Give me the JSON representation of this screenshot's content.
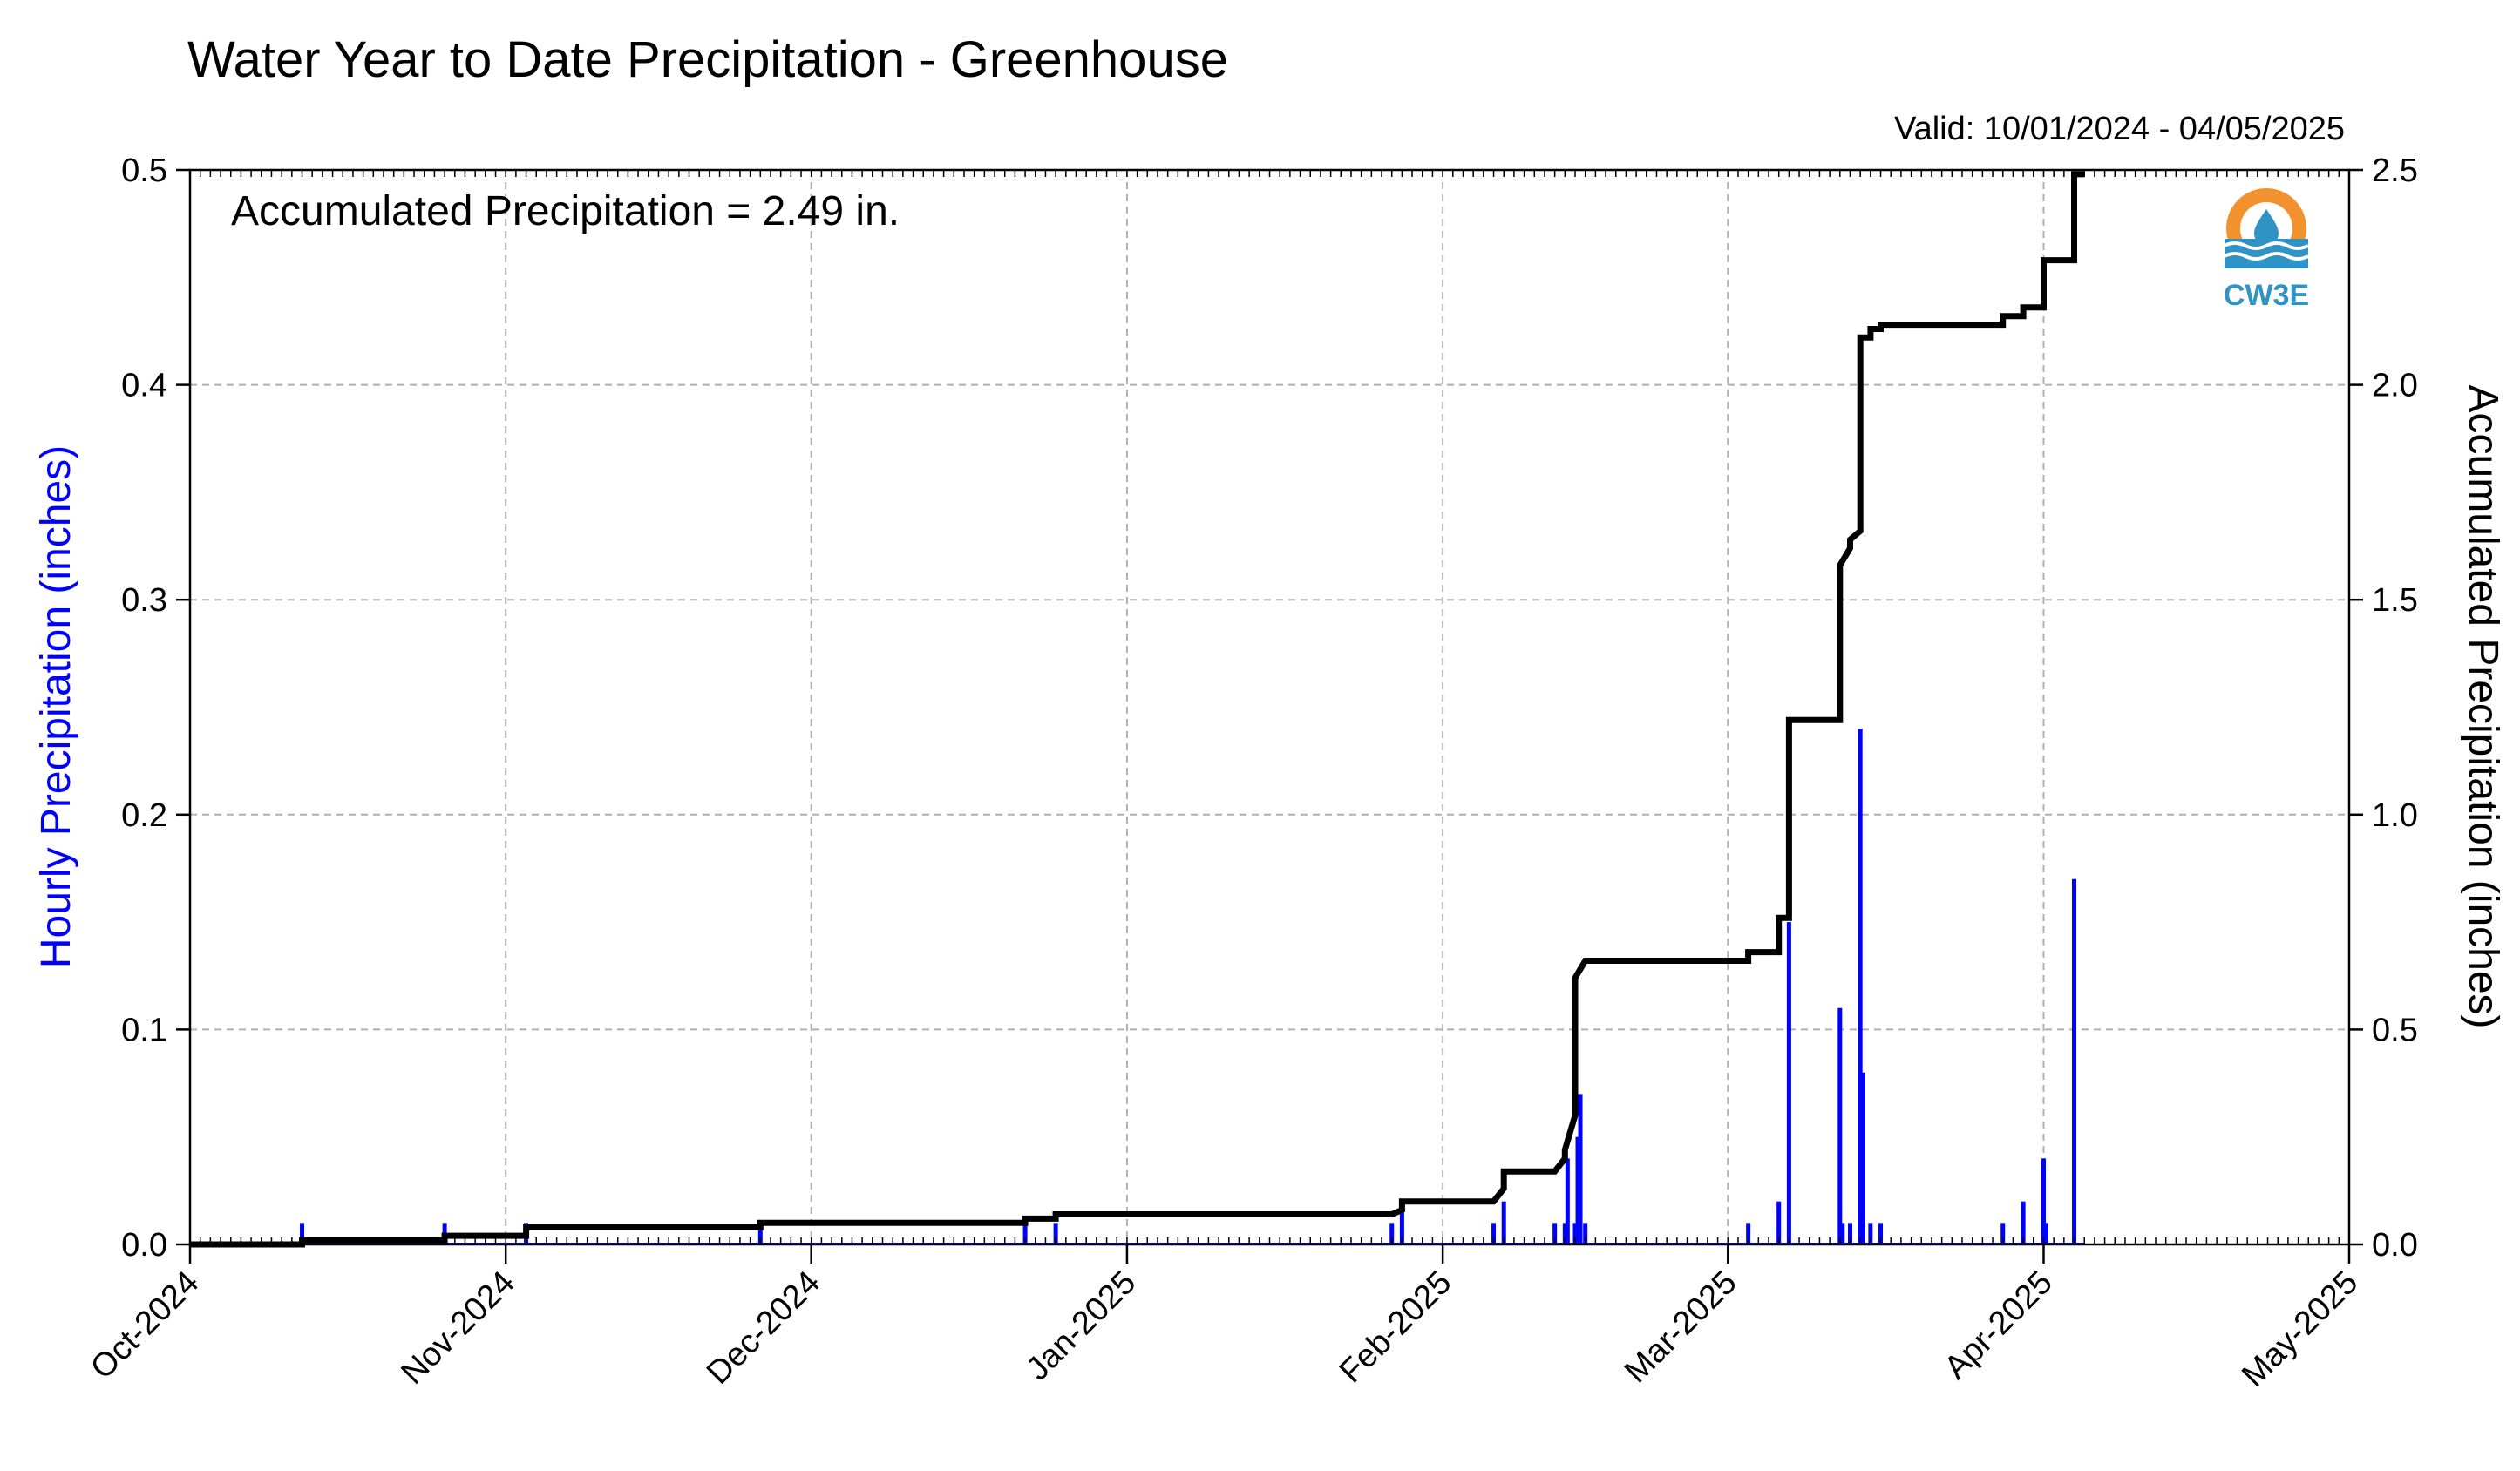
{
  "chart_data": {
    "type": "bar",
    "title": "Water Year to Date Precipitation - Greenhouse",
    "valid_text": "Valid: 10/01/2024 - 04/05/2025",
    "annotation": "Accumulated Precipitation = 2.49 in.",
    "logo_text": "CW3E",
    "ylabel_left": "Hourly Precipitation (inches)",
    "ylabel_right": "Accumulated Precipitation (inches)",
    "x_range": [
      "2024-10-01",
      "2025-05-01"
    ],
    "x_ticks": [
      "Oct-2024",
      "Nov-2024",
      "Dec-2024",
      "Jan-2025",
      "Feb-2025",
      "Mar-2025",
      "Apr-2025",
      "May-2025"
    ],
    "ylim_left": [
      0,
      0.5
    ],
    "ylim_right": [
      0,
      2.5
    ],
    "y_ticks_left": [
      "0.0",
      "0.1",
      "0.2",
      "0.3",
      "0.4",
      "0.5"
    ],
    "y_ticks_right": [
      "0.0",
      "0.5",
      "1.0",
      "1.5",
      "2.0",
      "2.5"
    ],
    "grid": true,
    "colors": {
      "hourly": "#0000ff",
      "accumulated": "#000000",
      "grid": "#b0b0b0",
      "logo_orange": "#f2922e",
      "logo_blue": "#2f93c6"
    },
    "series": [
      {
        "name": "Hourly Precipitation",
        "type": "bar",
        "axis": "left",
        "points": [
          [
            "2024-10-12",
            0.01
          ],
          [
            "2024-10-26",
            0.01
          ],
          [
            "2024-11-03",
            0.01
          ],
          [
            "2024-11-26",
            0.01
          ],
          [
            "2024-12-22",
            0.01
          ],
          [
            "2024-12-25",
            0.01
          ],
          [
            "2025-01-27",
            0.01
          ],
          [
            "2025-01-28",
            0.02
          ],
          [
            "2025-02-06",
            0.01
          ],
          [
            "2025-02-07",
            0.02
          ],
          [
            "2025-02-12",
            0.01
          ],
          [
            "2025-02-13",
            0.01
          ],
          [
            "2025-02-13",
            0.04
          ],
          [
            "2025-02-14",
            0.01
          ],
          [
            "2025-02-14",
            0.05
          ],
          [
            "2025-02-14",
            0.07
          ],
          [
            "2025-02-15",
            0.01
          ],
          [
            "2025-03-03",
            0.01
          ],
          [
            "2025-03-06",
            0.02
          ],
          [
            "2025-03-07",
            0.15
          ],
          [
            "2025-03-12",
            0.11
          ],
          [
            "2025-03-12",
            0.01
          ],
          [
            "2025-03-13",
            0.01
          ],
          [
            "2025-03-14",
            0.24
          ],
          [
            "2025-03-14",
            0.08
          ],
          [
            "2025-03-15",
            0.01
          ],
          [
            "2025-03-16",
            0.01
          ],
          [
            "2025-03-28",
            0.01
          ],
          [
            "2025-03-30",
            0.02
          ],
          [
            "2025-04-01",
            0.04
          ],
          [
            "2025-04-01",
            0.01
          ],
          [
            "2025-04-04",
            0.17
          ]
        ]
      },
      {
        "name": "Accumulated Precipitation",
        "type": "step",
        "axis": "right",
        "points": [
          [
            "2024-10-01",
            0.0
          ],
          [
            "2024-10-12",
            0.0
          ],
          [
            "2024-10-12",
            0.01
          ],
          [
            "2024-10-26",
            0.01
          ],
          [
            "2024-10-26",
            0.02
          ],
          [
            "2024-11-03",
            0.02
          ],
          [
            "2024-11-03",
            0.04
          ],
          [
            "2024-11-26",
            0.04
          ],
          [
            "2024-11-26",
            0.05
          ],
          [
            "2024-12-22",
            0.05
          ],
          [
            "2024-12-22",
            0.06
          ],
          [
            "2024-12-25",
            0.06
          ],
          [
            "2024-12-25",
            0.07
          ],
          [
            "2025-01-27",
            0.07
          ],
          [
            "2025-01-28",
            0.08
          ],
          [
            "2025-01-28",
            0.1
          ],
          [
            "2025-02-06",
            0.1
          ],
          [
            "2025-02-07",
            0.13
          ],
          [
            "2025-02-07",
            0.17
          ],
          [
            "2025-02-12",
            0.17
          ],
          [
            "2025-02-13",
            0.2
          ],
          [
            "2025-02-13",
            0.22
          ],
          [
            "2025-02-14",
            0.3
          ],
          [
            "2025-02-14",
            0.5
          ],
          [
            "2025-02-14",
            0.62
          ],
          [
            "2025-02-15",
            0.66
          ],
          [
            "2025-03-03",
            0.66
          ],
          [
            "2025-03-03",
            0.68
          ],
          [
            "2025-03-06",
            0.68
          ],
          [
            "2025-03-06",
            0.71
          ],
          [
            "2025-03-06",
            0.76
          ],
          [
            "2025-03-07",
            0.76
          ],
          [
            "2025-03-07",
            0.9
          ],
          [
            "2025-03-07",
            1.22
          ],
          [
            "2025-03-12",
            1.22
          ],
          [
            "2025-03-12",
            1.4
          ],
          [
            "2025-03-12",
            1.58
          ],
          [
            "2025-03-13",
            1.62
          ],
          [
            "2025-03-13",
            1.64
          ],
          [
            "2025-03-14",
            1.66
          ],
          [
            "2025-03-14",
            2.0
          ],
          [
            "2025-03-14",
            2.11
          ],
          [
            "2025-03-15",
            2.11
          ],
          [
            "2025-03-15",
            2.13
          ],
          [
            "2025-03-16",
            2.13
          ],
          [
            "2025-03-16",
            2.14
          ],
          [
            "2025-03-28",
            2.14
          ],
          [
            "2025-03-28",
            2.16
          ],
          [
            "2025-03-30",
            2.16
          ],
          [
            "2025-03-30",
            2.18
          ],
          [
            "2025-04-01",
            2.18
          ],
          [
            "2025-04-01",
            2.24
          ],
          [
            "2025-04-01",
            2.29
          ],
          [
            "2025-04-04",
            2.29
          ],
          [
            "2025-04-04",
            2.49
          ],
          [
            "2025-04-05",
            2.49
          ]
        ]
      }
    ]
  }
}
